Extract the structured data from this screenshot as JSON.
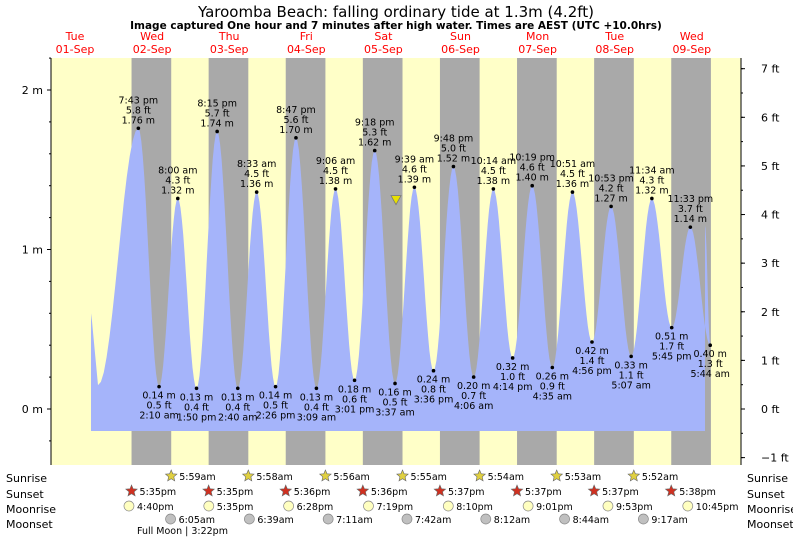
{
  "title": "Yaroomba Beach: falling  ordinary tide at 1.3m (4.2ft)",
  "subtitle": "Image captured One hour and 7 minutes after high water. Times are AEST (UTC +10.0hrs)",
  "days": [
    {
      "day": "Tue",
      "date": "01-Sep"
    },
    {
      "day": "Wed",
      "date": "02-Sep"
    },
    {
      "day": "Thu",
      "date": "03-Sep"
    },
    {
      "day": "Fri",
      "date": "04-Sep"
    },
    {
      "day": "Sat",
      "date": "05-Sep"
    },
    {
      "day": "Sun",
      "date": "06-Sep"
    },
    {
      "day": "Mon",
      "date": "07-Sep"
    },
    {
      "day": "Tue",
      "date": "08-Sep"
    },
    {
      "day": "Wed",
      "date": "09-Sep"
    }
  ],
  "row_labels": {
    "sunrise": "Sunrise",
    "sunset": "Sunset",
    "moonrise": "Moonrise",
    "moonset": "Moonset"
  },
  "sunrise": [
    "5:59am",
    "5:58am",
    "5:56am",
    "5:55am",
    "5:54am",
    "5:53am",
    "5:52am"
  ],
  "sunset": [
    "5:35pm",
    "5:35pm",
    "5:36pm",
    "5:36pm",
    "5:37pm",
    "5:37pm",
    "5:37pm",
    "5:38pm"
  ],
  "moonrise": [
    "4:40pm",
    "5:35pm",
    "6:28pm",
    "7:19pm",
    "8:10pm",
    "9:01pm",
    "9:53pm",
    "10:45pm"
  ],
  "moonset": [
    "6:05am",
    "6:39am",
    "7:11am",
    "7:42am",
    "8:12am",
    "8:44am",
    "9:17am"
  ],
  "moon_phase_text": "Full Moon | 3:22pm",
  "colors": {
    "day_bg": "#ffffc8",
    "night_bg": "#a9a9a9",
    "water": "#a5b4fa",
    "date_text": "#ff0000",
    "sun_star": "#e0d040",
    "sunset_star": "#d03020",
    "moonrise_disc": "#ffffc0",
    "moonset_disc": "#c0c0c0",
    "now_marker": "#e8e000"
  },
  "chart_data": {
    "type": "area",
    "title": "Yaroomba Beach: falling  ordinary tide at 1.3m (4.2ft)",
    "y_left_ticks": [
      "0 m",
      "1 m",
      "2 m"
    ],
    "y_left_values": [
      0,
      1,
      2
    ],
    "y_right_ticks": [
      "−1 ft",
      "0 ft",
      "1 ft",
      "2 ft",
      "3 ft",
      "4 ft",
      "5 ft",
      "6 ft",
      "7 ft"
    ],
    "y_right_values": [
      -1,
      0,
      1,
      2,
      3,
      4,
      5,
      6,
      7
    ],
    "ylim_m": [
      -0.3,
      2.2
    ],
    "current_level_m": 1.3,
    "extremes": [
      {
        "type": "high",
        "day": 0,
        "time": "7:43 pm",
        "ft": "5.8 ft",
        "m": "1.76 m",
        "h": 19.72,
        "v": 1.76
      },
      {
        "type": "low",
        "day": 1,
        "time": "2:10 am",
        "ft": "0.5 ft",
        "m": "0.14 m",
        "h": 2.17,
        "v": 0.14
      },
      {
        "type": "high",
        "day": 1,
        "time": "8:00 am",
        "ft": "4.3 ft",
        "m": "1.32 m",
        "h": 8.0,
        "v": 1.32
      },
      {
        "type": "low",
        "day": 1,
        "time": "1:50 pm",
        "ft": "0.4 ft",
        "m": "0.13 m",
        "h": 13.83,
        "v": 0.13
      },
      {
        "type": "high",
        "day": 1,
        "time": "8:15 pm",
        "ft": "5.7 ft",
        "m": "1.74 m",
        "h": 20.25,
        "v": 1.74
      },
      {
        "type": "low",
        "day": 2,
        "time": "2:40 am",
        "ft": "0.4 ft",
        "m": "0.13 m",
        "h": 2.67,
        "v": 0.13
      },
      {
        "type": "high",
        "day": 2,
        "time": "8:33 am",
        "ft": "4.5 ft",
        "m": "1.36 m",
        "h": 8.55,
        "v": 1.36
      },
      {
        "type": "low",
        "day": 2,
        "time": "2:26 pm",
        "ft": "0.5 ft",
        "m": "0.14 m",
        "h": 14.43,
        "v": 0.14
      },
      {
        "type": "high",
        "day": 2,
        "time": "8:47 pm",
        "ft": "5.6 ft",
        "m": "1.70 m",
        "h": 20.78,
        "v": 1.7
      },
      {
        "type": "low",
        "day": 3,
        "time": "3:09 am",
        "ft": "0.4 ft",
        "m": "0.13 m",
        "h": 3.15,
        "v": 0.13
      },
      {
        "type": "high",
        "day": 3,
        "time": "9:06 am",
        "ft": "4.5 ft",
        "m": "1.38 m",
        "h": 9.1,
        "v": 1.38
      },
      {
        "type": "low",
        "day": 3,
        "time": "3:01 pm",
        "ft": "0.6 ft",
        "m": "0.18 m",
        "h": 15.02,
        "v": 0.18
      },
      {
        "type": "high",
        "day": 3,
        "time": "9:18 pm",
        "ft": "5.3 ft",
        "m": "1.62 m",
        "h": 21.3,
        "v": 1.62
      },
      {
        "type": "low",
        "day": 4,
        "time": "3:37 am",
        "ft": "0.5 ft",
        "m": "0.16 m",
        "h": 3.62,
        "v": 0.16
      },
      {
        "type": "high",
        "day": 4,
        "time": "9:39 am",
        "ft": "4.6 ft",
        "m": "1.39 m",
        "h": 9.65,
        "v": 1.39
      },
      {
        "type": "low",
        "day": 4,
        "time": "3:36 pm",
        "ft": "0.8 ft",
        "m": "0.24 m",
        "h": 15.6,
        "v": 0.24
      },
      {
        "type": "high",
        "day": 4,
        "time": "9:48 pm",
        "ft": "5.0 ft",
        "m": "1.52 m",
        "h": 21.8,
        "v": 1.52
      },
      {
        "type": "low",
        "day": 5,
        "time": "4:06 am",
        "ft": "0.7 ft",
        "m": "0.20 m",
        "h": 4.1,
        "v": 0.2
      },
      {
        "type": "high",
        "day": 5,
        "time": "10:14 am",
        "ft": "4.5 ft",
        "m": "1.38 m",
        "h": 10.23,
        "v": 1.38
      },
      {
        "type": "low",
        "day": 5,
        "time": "4:14 pm",
        "ft": "1.0 ft",
        "m": "0.32 m",
        "h": 16.23,
        "v": 0.32
      },
      {
        "type": "high",
        "day": 5,
        "time": "10:19 pm",
        "ft": "4.6 ft",
        "m": "1.40 m",
        "h": 22.32,
        "v": 1.4
      },
      {
        "type": "low",
        "day": 6,
        "time": "4:35 am",
        "ft": "0.9 ft",
        "m": "0.26 m",
        "h": 4.58,
        "v": 0.26
      },
      {
        "type": "high",
        "day": 6,
        "time": "10:51 am",
        "ft": "4.5 ft",
        "m": "1.36 m",
        "h": 10.85,
        "v": 1.36
      },
      {
        "type": "low",
        "day": 6,
        "time": "4:56 pm",
        "ft": "1.4 ft",
        "m": "0.42 m",
        "h": 16.93,
        "v": 0.42
      },
      {
        "type": "high",
        "day": 6,
        "time": "10:53 pm",
        "ft": "4.2 ft",
        "m": "1.27 m",
        "h": 22.88,
        "v": 1.27
      },
      {
        "type": "low",
        "day": 7,
        "time": "5:07 am",
        "ft": "1.1 ft",
        "m": "0.33 m",
        "h": 5.12,
        "v": 0.33
      },
      {
        "type": "high",
        "day": 7,
        "time": "11:34 am",
        "ft": "4.3 ft",
        "m": "1.32 m",
        "h": 11.57,
        "v": 1.32
      },
      {
        "type": "low",
        "day": 7,
        "time": "5:45 pm",
        "ft": "1.7 ft",
        "m": "0.51 m",
        "h": 17.75,
        "v": 0.51
      },
      {
        "type": "high",
        "day": 7,
        "time": "11:33 pm",
        "ft": "3.7 ft",
        "m": "1.14 m",
        "h": 23.55,
        "v": 1.14
      },
      {
        "type": "low",
        "day": 8,
        "time": "5:44 am",
        "ft": "1.3 ft",
        "m": "0.40 m",
        "h": 5.73,
        "v": 0.4
      }
    ]
  }
}
